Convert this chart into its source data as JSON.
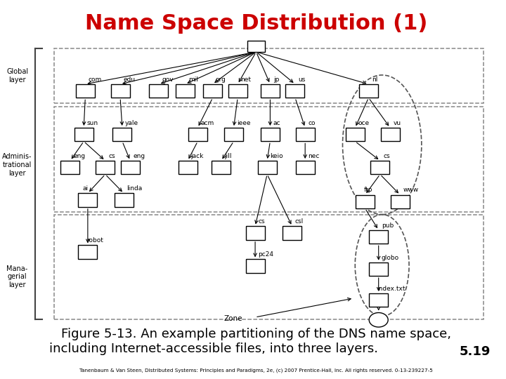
{
  "title": "Name Space Distribution (1)",
  "title_color": "#cc0000",
  "title_fontsize": 22,
  "caption_line1": "Figure 5-13. An example partitioning of the DNS name space,",
  "caption_line2": "including Internet-accessible files, into three layers.",
  "caption_color": "#000000",
  "caption_fontsize": 13,
  "page_number": "5.19",
  "footnote": "Tanenbaum & Van Steen, Distributed Systems: Principles and Paradigms, 2e, (c) 2007 Prentice-Hall, Inc. All rights reserved. 0-13-239227-5",
  "bg_color": "#ffffff",
  "layer_labels": [
    "Global\nlayer",
    "Adminis-\ntrational\nlayer",
    "Mana-\ngerial\nlayer"
  ],
  "zone_label": "Zone"
}
